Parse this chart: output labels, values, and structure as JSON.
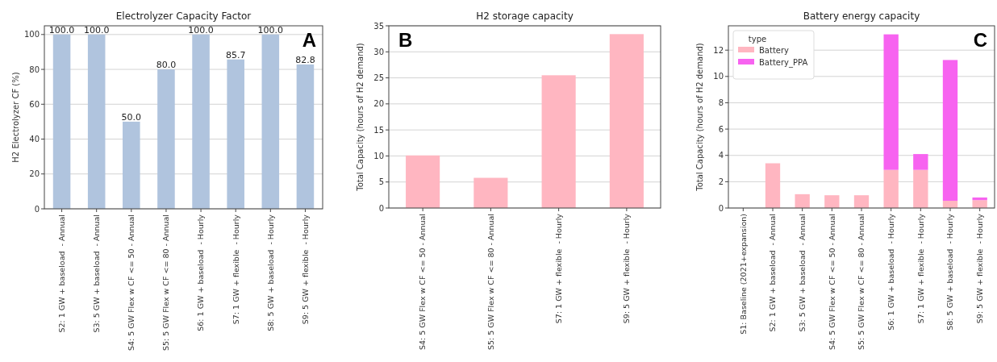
{
  "chart_data": [
    {
      "type": "bar",
      "title": "Electrolyzer Capacity Factor",
      "ylabel": "H2 Electrolyzer CF (%)",
      "categories": [
        "S2: 1 GW + baseload  - Annual",
        "S3: 5 GW + baseload  - Annual",
        "S4: 5 GW Flex w CF <= 50 - Annual",
        "S5: 5 GW Flex w CF <= 80 - Annual",
        "S6: 1 GW + baseload  - Hourly",
        "S7: 1 GW + flexible  - Hourly",
        "S8: 5 GW + baseload  - Hourly",
        "S9: 5 GW + flexible  - Hourly"
      ],
      "series": [
        {
          "color": "#b0c4de",
          "values": [
            100.0,
            100.0,
            50.0,
            80.0,
            100.0,
            85.7,
            100.0,
            82.8
          ],
          "value_labels": [
            "100.0",
            "100.0",
            "50.0",
            "80.0",
            "100.0",
            "85.7",
            "100.0",
            "82.8"
          ]
        }
      ],
      "ylim": [
        0,
        105
      ],
      "yticks": [
        0,
        20,
        40,
        60,
        80,
        100
      ],
      "grid": "y",
      "annotations": [
        "A"
      ]
    },
    {
      "type": "bar",
      "title": "H2 storage capacity",
      "ylabel": "Total Capacity (hours of H2 demand)",
      "categories": [
        "S4: 5 GW Flex w CF <= 50 - Annual",
        "S5: 5 GW Flex w CF <= 80 - Annual",
        "S7: 1 GW + flexible  - Hourly",
        "S9: 5 GW + flexible  - Hourly"
      ],
      "series": [
        {
          "color": "#ffb6c1",
          "values": [
            10.1,
            5.8,
            25.5,
            33.4
          ]
        }
      ],
      "ylim": [
        0,
        35
      ],
      "yticks": [
        0,
        5,
        10,
        15,
        20,
        25,
        30,
        35
      ],
      "grid": "y",
      "annotations": [
        "B"
      ]
    },
    {
      "type": "bar",
      "title": "Battery energy capacity",
      "ylabel": "Total Capacity (hours of H2 demand)",
      "legend_title": "type",
      "legend": "top left",
      "stacked": true,
      "categories": [
        "S1: Baseline (2021+expansion)",
        "S2: 1 GW + baseload  - Annual",
        "S3: 5 GW + baseload  - Annual",
        "S4: 5 GW Flex w CF <= 50 - Annual",
        "S5: 5 GW Flex w CF <= 80 - Annual",
        "S6: 1 GW + baseload  - Hourly",
        "S7: 1 GW + flexible  - Hourly",
        "S8: 5 GW + baseload  - Hourly",
        "S9: 5 GW + flexible  - Hourly"
      ],
      "series": [
        {
          "name": "Battery",
          "color": "#ffb6c1",
          "values": [
            0,
            3.4,
            1.05,
            0.97,
            0.97,
            2.9,
            2.9,
            0.55,
            0.6
          ]
        },
        {
          "name": "Battery_PPA",
          "color": "#f763f0",
          "values": [
            0,
            0,
            0,
            0,
            0,
            10.3,
            1.2,
            10.7,
            0.2
          ]
        }
      ],
      "ylim": [
        0,
        13.85
      ],
      "yticks": [
        0,
        2,
        4,
        6,
        8,
        10,
        12
      ],
      "grid": "y",
      "annotations": [
        "C"
      ]
    }
  ]
}
